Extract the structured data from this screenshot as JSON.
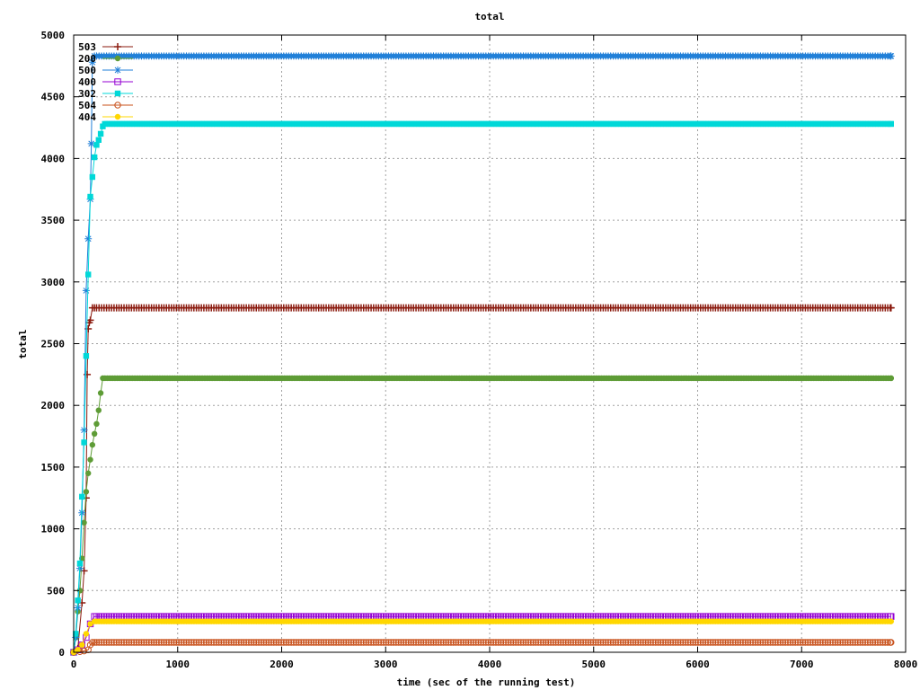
{
  "chart_data": {
    "type": "line",
    "title": "total",
    "xlabel": "time (sec of the running test)",
    "ylabel": "total",
    "xlim": [
      0,
      8000
    ],
    "ylim": [
      0,
      5000
    ],
    "xticks": [
      0,
      1000,
      2000,
      3000,
      4000,
      5000,
      6000,
      7000,
      8000
    ],
    "yticks": [
      0,
      500,
      1000,
      1500,
      2000,
      2500,
      3000,
      3500,
      4000,
      4500,
      5000
    ],
    "grid": true,
    "legend_position": "top-left",
    "series": [
      {
        "name": "503",
        "color": "#8b1a0e",
        "marker": "plus",
        "x": [
          0,
          40,
          80,
          100,
          120,
          130,
          140,
          150,
          160,
          180,
          200,
          7860
        ],
        "y": [
          0,
          30,
          400,
          660,
          1250,
          2250,
          2620,
          2670,
          2690,
          2790,
          2790,
          2790
        ]
      },
      {
        "name": "200",
        "color": "#5e9c36",
        "marker": "circle",
        "x": [
          0,
          20,
          40,
          60,
          80,
          100,
          120,
          140,
          160,
          180,
          200,
          220,
          240,
          260,
          280,
          7860
        ],
        "y": [
          0,
          120,
          330,
          500,
          760,
          1050,
          1300,
          1450,
          1560,
          1680,
          1770,
          1850,
          1960,
          2100,
          2220,
          2220
        ]
      },
      {
        "name": "500",
        "color": "#1f7fd8",
        "marker": "star",
        "x": [
          0,
          20,
          40,
          60,
          80,
          100,
          120,
          140,
          160,
          170,
          180,
          200,
          7860
        ],
        "y": [
          0,
          120,
          360,
          680,
          1130,
          1800,
          2930,
          3350,
          3670,
          4120,
          4780,
          4830,
          4830
        ]
      },
      {
        "name": "400",
        "color": "#9400d3",
        "marker": "square-open",
        "x": [
          0,
          40,
          80,
          120,
          160,
          200,
          7860
        ],
        "y": [
          0,
          20,
          60,
          120,
          230,
          290,
          290
        ]
      },
      {
        "name": "302",
        "color": "#00d8d8",
        "marker": "square",
        "x": [
          0,
          20,
          40,
          60,
          80,
          100,
          120,
          140,
          160,
          180,
          200,
          220,
          240,
          260,
          280,
          300,
          7860
        ],
        "y": [
          0,
          150,
          420,
          720,
          1260,
          1700,
          2400,
          3060,
          3690,
          3850,
          4010,
          4110,
          4150,
          4200,
          4260,
          4280,
          4280
        ]
      },
      {
        "name": "504",
        "color": "#c8501a",
        "marker": "circle-open",
        "x": [
          0,
          60,
          100,
          140,
          160,
          180,
          200,
          7860
        ],
        "y": [
          0,
          5,
          10,
          20,
          60,
          80,
          80,
          80
        ]
      },
      {
        "name": "404",
        "color": "#ffd700",
        "marker": "circle",
        "x": [
          0,
          40,
          80,
          120,
          160,
          200,
          7860
        ],
        "y": [
          0,
          20,
          60,
          150,
          230,
          250,
          250
        ]
      }
    ]
  }
}
